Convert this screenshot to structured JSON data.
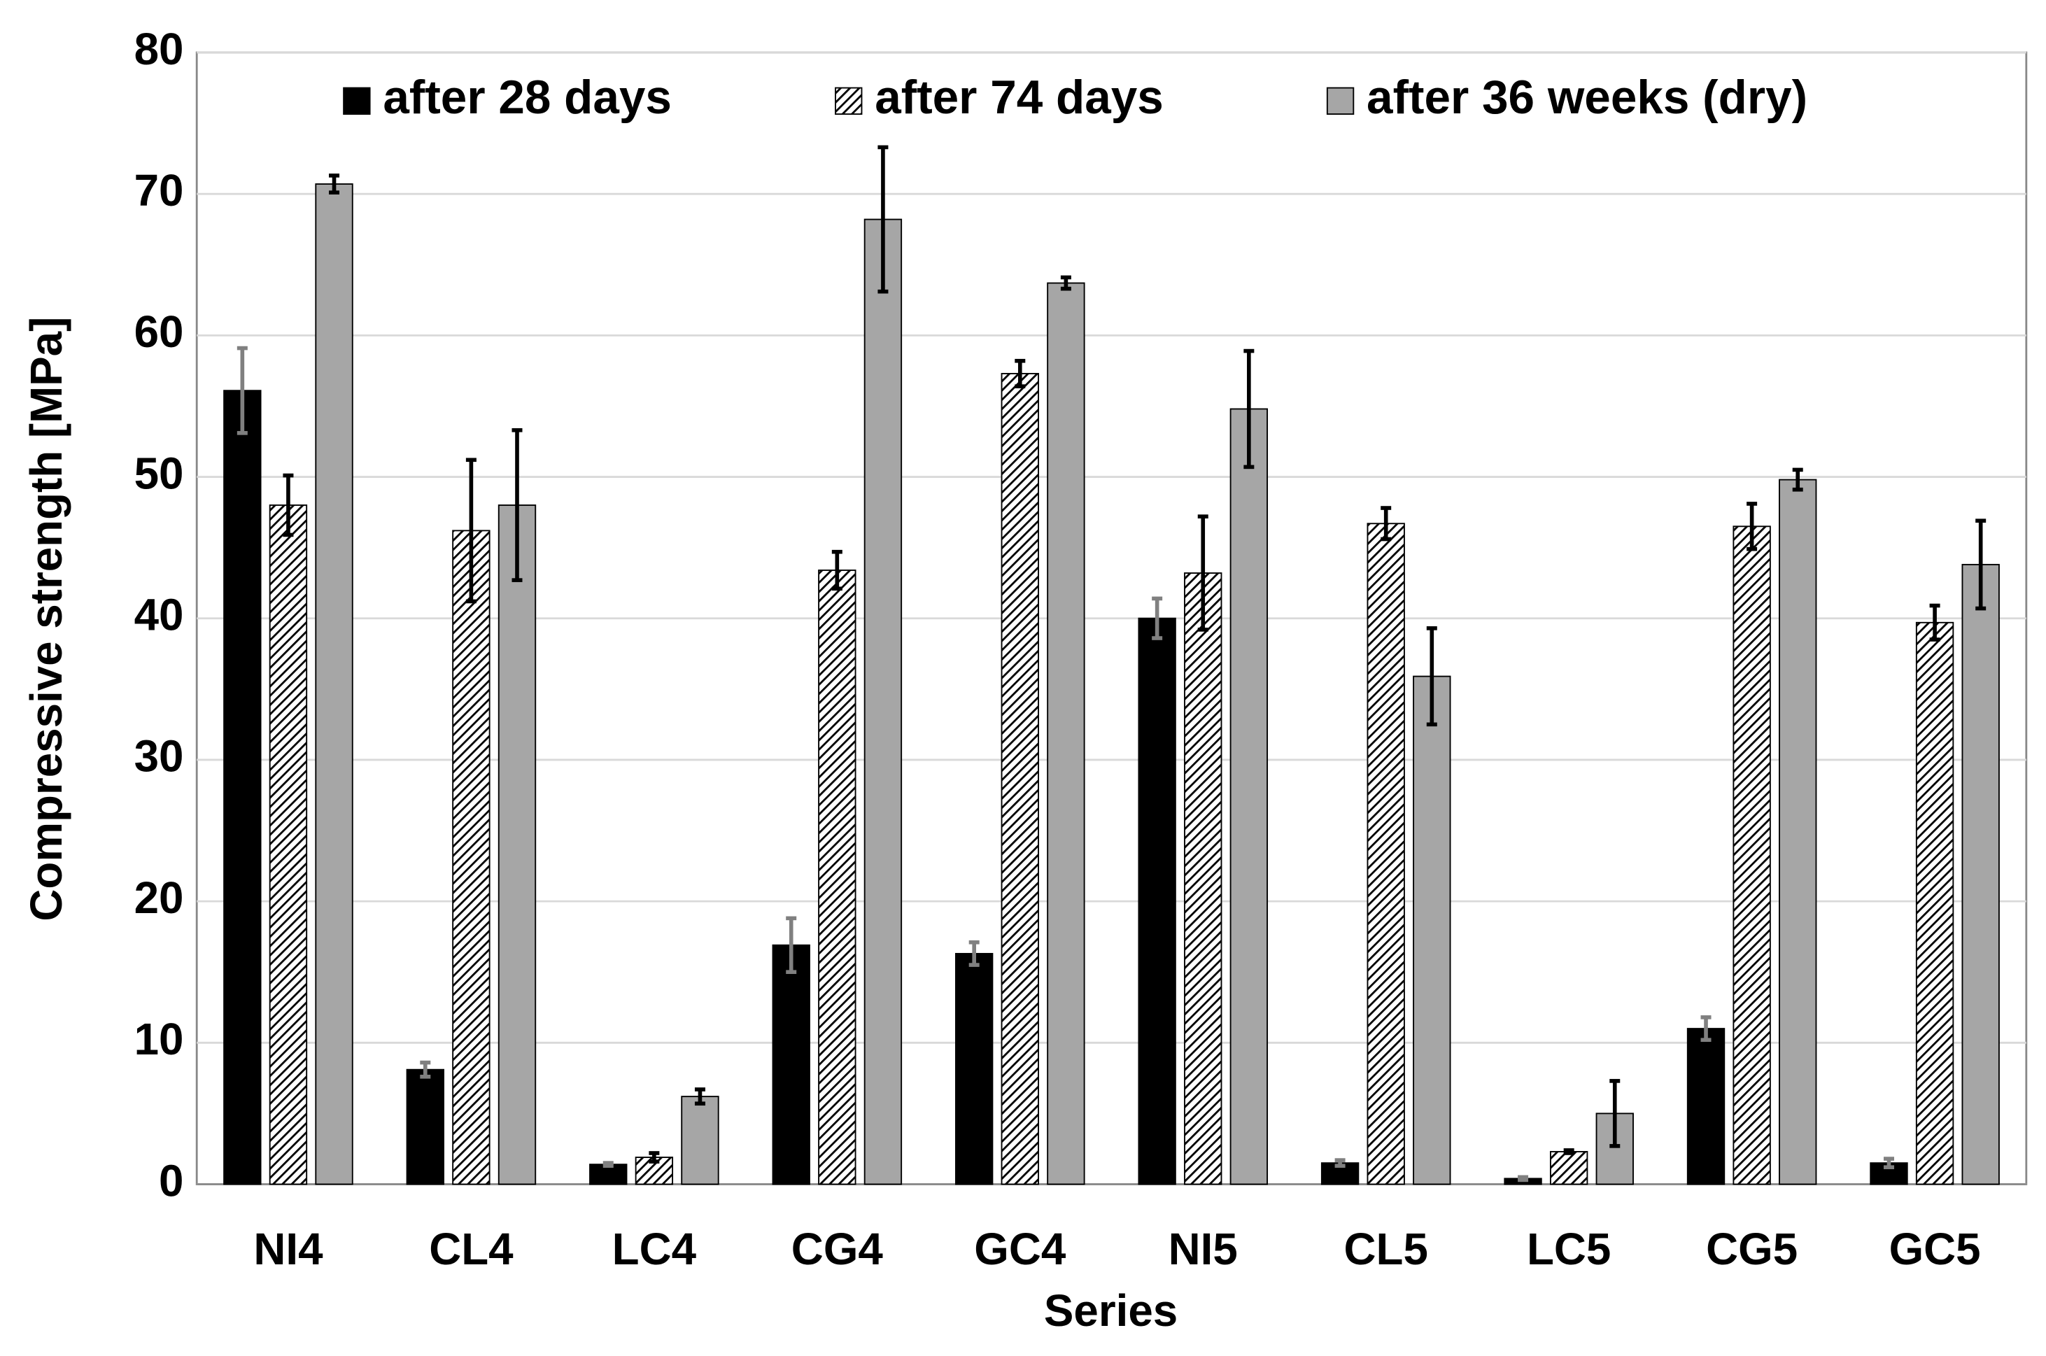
{
  "chart_data": {
    "type": "bar",
    "x_label": "Series",
    "y_label": "Compressive strength [MPa]",
    "categories": [
      "NI4",
      "CL4",
      "LC4",
      "CG4",
      "GC4",
      "NI5",
      "CL5",
      "LC5",
      "CG5",
      "GC5"
    ],
    "series": [
      {
        "name": "after 28 days",
        "color": "#000000",
        "error_color": "#808080",
        "values": [
          56.1,
          8.1,
          1.4,
          16.9,
          16.3,
          40.0,
          1.5,
          0.4,
          11.0,
          1.5
        ],
        "errors": [
          3.0,
          0.5,
          0.1,
          1.9,
          0.8,
          1.4,
          0.2,
          0.1,
          0.8,
          0.3
        ]
      },
      {
        "name": "after 74 days",
        "color": "#000000",
        "pattern": "hatch",
        "error_color": "#000000",
        "values": [
          48.0,
          46.2,
          1.9,
          43.4,
          57.3,
          43.2,
          46.7,
          2.3,
          46.5,
          39.7
        ],
        "errors": [
          2.1,
          5.0,
          0.3,
          1.3,
          0.9,
          4.0,
          1.1,
          0.1,
          1.6,
          1.2
        ]
      },
      {
        "name": "after 36 weeks (dry)",
        "color": "#a6a6a6",
        "error_color": "#000000",
        "values": [
          70.7,
          48.0,
          6.2,
          68.2,
          63.7,
          54.8,
          35.9,
          5.0,
          49.8,
          43.8
        ],
        "errors": [
          0.6,
          5.3,
          0.5,
          5.1,
          0.4,
          4.1,
          3.4,
          2.3,
          0.7,
          3.1
        ]
      }
    ],
    "ylim": [
      0,
      80
    ],
    "yticks": [
      0,
      10,
      20,
      30,
      40,
      50,
      60,
      70,
      80
    ],
    "grid": true,
    "legend": "top"
  }
}
